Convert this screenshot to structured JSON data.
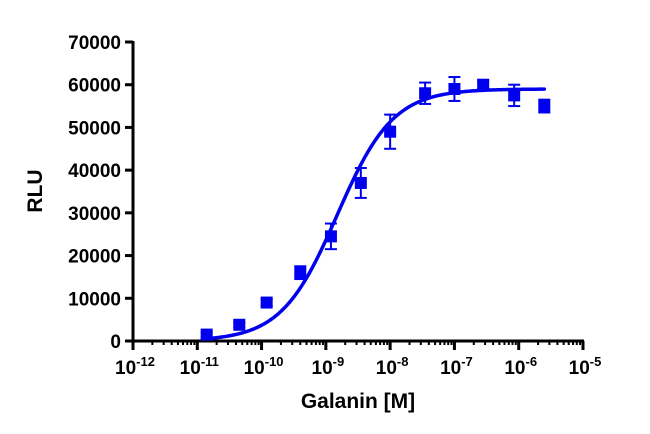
{
  "chart_data": {
    "type": "scatter",
    "xlabel": "Galanin [M]",
    "ylabel": "RLU",
    "x_scale": "log",
    "xlim": [
      1e-12,
      1e-05
    ],
    "ylim": [
      0,
      70000
    ],
    "x_ticks": [
      {
        "value": 1e-12,
        "base": "10",
        "exp": "-12"
      },
      {
        "value": 1e-11,
        "base": "10",
        "exp": "-11"
      },
      {
        "value": 1e-10,
        "base": "10",
        "exp": "-10"
      },
      {
        "value": 1e-09,
        "base": "10",
        "exp": "-9"
      },
      {
        "value": 1e-08,
        "base": "10",
        "exp": "-8"
      },
      {
        "value": 1e-07,
        "base": "10",
        "exp": "-7"
      },
      {
        "value": 1e-06,
        "base": "10",
        "exp": "-6"
      },
      {
        "value": 1e-05,
        "base": "10",
        "exp": "-5"
      }
    ],
    "y_ticks": [
      "0",
      "10000",
      "20000",
      "30000",
      "40000",
      "50000",
      "60000",
      "70000"
    ],
    "grid": false,
    "color": "#0000ee",
    "series": [
      {
        "marker": "square",
        "points": [
          {
            "x": 1.4e-11,
            "y": 1500,
            "err": 500
          },
          {
            "x": 4.5e-11,
            "y": 3800,
            "err": 600
          },
          {
            "x": 1.2e-10,
            "y": 9000,
            "err": 800
          },
          {
            "x": 4e-10,
            "y": 16000,
            "err": 1500
          },
          {
            "x": 1.2e-09,
            "y": 24500,
            "err": 3000
          },
          {
            "x": 3.5e-09,
            "y": 37000,
            "err": 3500
          },
          {
            "x": 1e-08,
            "y": 49000,
            "err": 4000
          },
          {
            "x": 3.5e-08,
            "y": 58000,
            "err": 2500
          },
          {
            "x": 1e-07,
            "y": 59000,
            "err": 2800
          },
          {
            "x": 2.8e-07,
            "y": 60000,
            "err": 1000
          },
          {
            "x": 8.5e-07,
            "y": 57500,
            "err": 2500
          },
          {
            "x": 2.5e-06,
            "y": 55000,
            "err": 1500
          }
        ]
      }
    ],
    "fit_curve": {
      "model": "sigmoidal dose-response",
      "bottom": 0,
      "top": 59000,
      "ec50": 1.5e-09,
      "hill": 1.0,
      "x_range": [
        1.2e-11,
        2.5e-06
      ]
    }
  }
}
